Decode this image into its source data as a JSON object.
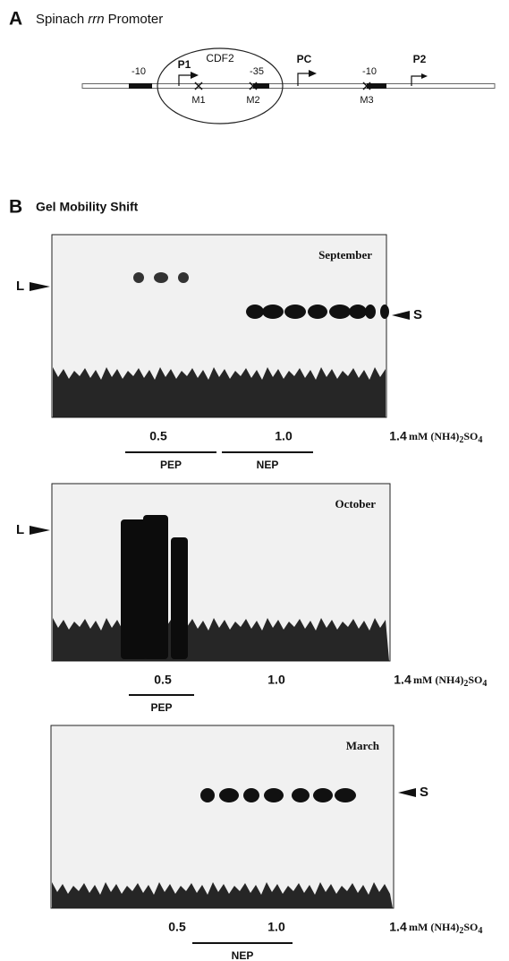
{
  "panel_a": {
    "label": "A",
    "title": {
      "before": "Spinach",
      "italic": "rrn",
      "after": "Promoter"
    },
    "diagram": {
      "minus10_left": "-10",
      "p1": "P1",
      "cdf2": "CDF2",
      "minus35": "-35",
      "pc": "PC",
      "minus10_right": "-10",
      "p2": "P2",
      "m1": "M1",
      "m2": "M2",
      "m3": "M3"
    }
  },
  "panel_b": {
    "label": "B",
    "title": "Gel Mobility Shift",
    "gels": [
      {
        "month": "September",
        "left_marker": "L",
        "right_marker": "S",
        "ticks": [
          "0.5",
          "1.0",
          "1.4"
        ],
        "unit": {
          "a": "mM (NH4)",
          "b": "2",
          "c": "SO",
          "d": "4"
        },
        "groups": [
          "PEP",
          "NEP"
        ]
      },
      {
        "month": "October",
        "left_marker": "L",
        "ticks": [
          "0.5",
          "1.0",
          "1.4"
        ],
        "unit": {
          "a": "mM (NH4)",
          "b": "2",
          "c": "SO",
          "d": "4"
        },
        "groups": [
          "PEP"
        ]
      },
      {
        "month": "March",
        "right_marker": "S",
        "ticks": [
          "0.5",
          "1.0",
          "1.4"
        ],
        "unit": {
          "a": "mM (NH4)",
          "b": "2",
          "c": "SO",
          "d": "4"
        },
        "groups": [
          "NEP"
        ]
      }
    ]
  }
}
